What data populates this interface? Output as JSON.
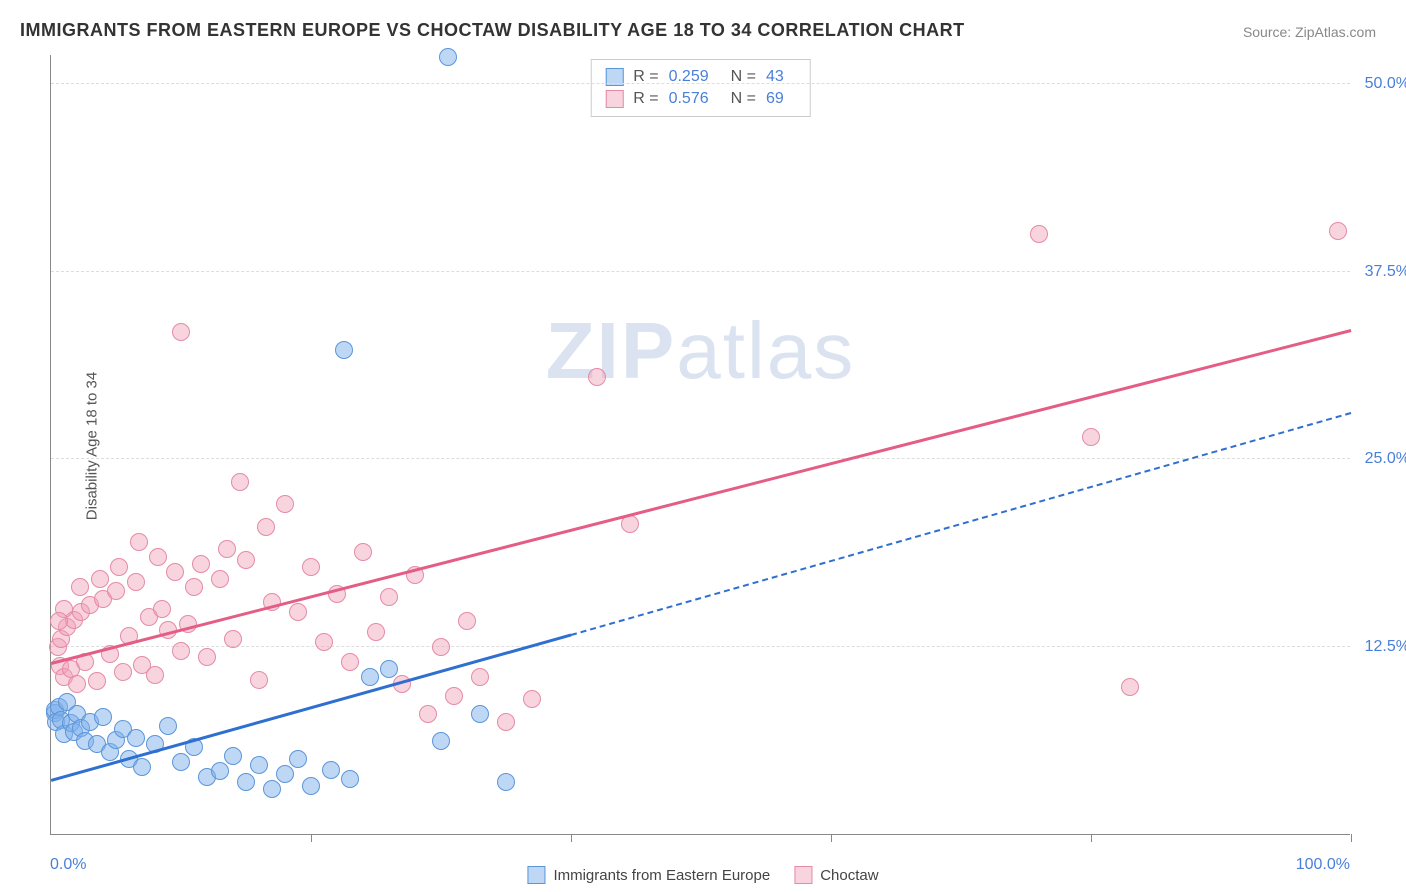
{
  "chart": {
    "type": "scatter",
    "title": "IMMIGRANTS FROM EASTERN EUROPE VS CHOCTAW DISABILITY AGE 18 TO 34 CORRELATION CHART",
    "source_label": "Source: ",
    "source_name": "ZipAtlas.com",
    "ylabel": "Disability Age 18 to 34",
    "watermark_bold": "ZIP",
    "watermark_rest": "atlas",
    "background_color": "#ffffff",
    "grid_color": "#dddddd",
    "axis_color": "#888888",
    "tick_label_color": "#4a7fd8",
    "xlim": [
      0,
      100
    ],
    "ylim": [
      0,
      52
    ],
    "x_ticks": [
      0,
      20,
      40,
      60,
      80,
      100
    ],
    "x_tick_labels_shown": {
      "0": "0.0%",
      "100": "100.0%"
    },
    "y_gridlines": [
      12.5,
      25.0,
      37.5,
      50.0
    ],
    "y_tick_labels": [
      "12.5%",
      "25.0%",
      "37.5%",
      "50.0%"
    ],
    "point_radius": 9,
    "series": [
      {
        "name": "Immigrants from Eastern Europe",
        "key": "blue",
        "fill": "rgba(125,175,235,0.5)",
        "stroke": "#5b96d9",
        "trend_color": "#2f6fd0",
        "R": 0.259,
        "N": 43,
        "trend": {
          "x1": 0,
          "y1": 3.5,
          "x2": 40,
          "y2": 13.2,
          "extend_to_x": 100,
          "extend_y": 28.0
        },
        "points": [
          [
            0.3,
            8.1
          ],
          [
            0.3,
            8.3
          ],
          [
            0.4,
            7.5
          ],
          [
            0.6,
            8.5
          ],
          [
            0.8,
            7.6
          ],
          [
            1.0,
            6.7
          ],
          [
            1.2,
            8.8
          ],
          [
            1.5,
            7.4
          ],
          [
            1.8,
            6.8
          ],
          [
            2.0,
            8.0
          ],
          [
            2.3,
            7.1
          ],
          [
            2.6,
            6.2
          ],
          [
            3.0,
            7.5
          ],
          [
            3.5,
            6.0
          ],
          [
            4.0,
            7.8
          ],
          [
            4.5,
            5.5
          ],
          [
            5.0,
            6.3
          ],
          [
            5.5,
            7.0
          ],
          [
            6.0,
            5.0
          ],
          [
            6.5,
            6.4
          ],
          [
            7.0,
            4.5
          ],
          [
            8.0,
            6.0
          ],
          [
            9.0,
            7.2
          ],
          [
            10.0,
            4.8
          ],
          [
            11.0,
            5.8
          ],
          [
            12.0,
            3.8
          ],
          [
            13.0,
            4.2
          ],
          [
            14.0,
            5.2
          ],
          [
            15.0,
            3.5
          ],
          [
            16.0,
            4.6
          ],
          [
            17.0,
            3.0
          ],
          [
            18.0,
            4.0
          ],
          [
            19.0,
            5.0
          ],
          [
            20.0,
            3.2
          ],
          [
            21.5,
            4.3
          ],
          [
            23.0,
            3.7
          ],
          [
            24.5,
            10.5
          ],
          [
            26.0,
            11.0
          ],
          [
            22.5,
            32.3
          ],
          [
            30.0,
            6.2
          ],
          [
            33.0,
            8.0
          ],
          [
            35.0,
            3.5
          ],
          [
            30.5,
            51.8
          ]
        ]
      },
      {
        "name": "Choctaw",
        "key": "pink",
        "fill": "rgba(240,160,185,0.45)",
        "stroke": "#e58aa8",
        "trend_color": "#e45d84",
        "R": 0.576,
        "N": 69,
        "trend": {
          "x1": 0,
          "y1": 11.3,
          "x2": 100,
          "y2": 33.5
        },
        "points": [
          [
            0.5,
            12.5
          ],
          [
            0.7,
            11.2
          ],
          [
            0.8,
            13.0
          ],
          [
            1.0,
            10.5
          ],
          [
            1.2,
            13.8
          ],
          [
            1.5,
            11.0
          ],
          [
            1.8,
            14.3
          ],
          [
            2.0,
            10.0
          ],
          [
            2.3,
            14.8
          ],
          [
            2.6,
            11.5
          ],
          [
            3.0,
            15.3
          ],
          [
            3.5,
            10.2
          ],
          [
            4.0,
            15.7
          ],
          [
            4.5,
            12.0
          ],
          [
            5.0,
            16.2
          ],
          [
            5.5,
            10.8
          ],
          [
            6.0,
            13.2
          ],
          [
            6.5,
            16.8
          ],
          [
            7.0,
            11.3
          ],
          [
            7.5,
            14.5
          ],
          [
            8.0,
            10.6
          ],
          [
            8.5,
            15.0
          ],
          [
            9.0,
            13.6
          ],
          [
            9.5,
            17.5
          ],
          [
            10.0,
            12.2
          ],
          [
            10.5,
            14.0
          ],
          [
            11.0,
            16.5
          ],
          [
            12.0,
            11.8
          ],
          [
            13.0,
            17.0
          ],
          [
            14.0,
            13.0
          ],
          [
            15.0,
            18.3
          ],
          [
            16.0,
            10.3
          ],
          [
            17.0,
            15.5
          ],
          [
            18.0,
            22.0
          ],
          [
            19.0,
            14.8
          ],
          [
            20.0,
            17.8
          ],
          [
            21.0,
            12.8
          ],
          [
            22.0,
            16.0
          ],
          [
            23.0,
            11.5
          ],
          [
            24.0,
            18.8
          ],
          [
            25.0,
            13.5
          ],
          [
            26.0,
            15.8
          ],
          [
            27.0,
            10.0
          ],
          [
            28.0,
            17.3
          ],
          [
            29.0,
            8.0
          ],
          [
            30.0,
            12.5
          ],
          [
            31.0,
            9.2
          ],
          [
            32.0,
            14.2
          ],
          [
            33.0,
            10.5
          ],
          [
            35.0,
            7.5
          ],
          [
            37.0,
            9.0
          ],
          [
            10.0,
            33.5
          ],
          [
            14.5,
            23.5
          ],
          [
            16.5,
            20.5
          ],
          [
            13.5,
            19.0
          ],
          [
            11.5,
            18.0
          ],
          [
            8.2,
            18.5
          ],
          [
            6.8,
            19.5
          ],
          [
            5.2,
            17.8
          ],
          [
            3.8,
            17.0
          ],
          [
            2.2,
            16.5
          ],
          [
            1.0,
            15.0
          ],
          [
            0.6,
            14.2
          ],
          [
            42.0,
            30.5
          ],
          [
            44.5,
            20.7
          ],
          [
            76.0,
            40.0
          ],
          [
            80.0,
            26.5
          ],
          [
            83.0,
            9.8
          ],
          [
            99.0,
            40.2
          ]
        ]
      }
    ],
    "bottom_legend": [
      {
        "key": "blue",
        "label": "Immigrants from Eastern Europe"
      },
      {
        "key": "pink",
        "label": "Choctaw"
      }
    ]
  }
}
